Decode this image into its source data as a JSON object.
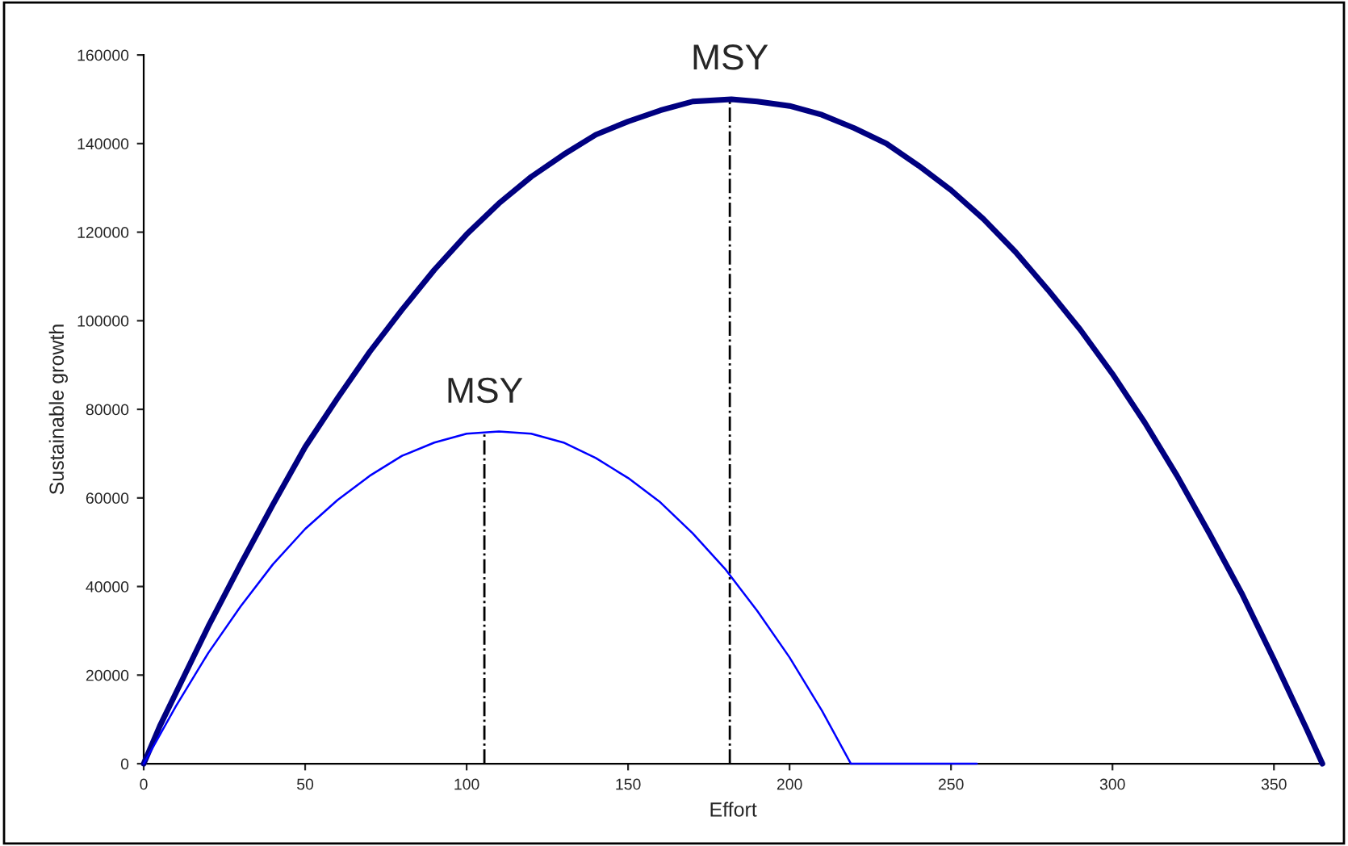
{
  "chart_data": {
    "type": "line",
    "xlabel": "Effort",
    "ylabel": "Sustainable growth",
    "xlim": [
      0,
      365
    ],
    "xticks": [
      0,
      50,
      100,
      150,
      200,
      250,
      300,
      350
    ],
    "ylim": [
      0,
      160000
    ],
    "yticks": [
      0,
      20000,
      40000,
      60000,
      80000,
      100000,
      120000,
      140000,
      160000
    ],
    "grid": false,
    "legend": false,
    "marker": "none",
    "line_style": "solid",
    "series": [
      {
        "color": "#000080",
        "x": [
          0,
          5,
          10,
          20,
          30,
          40,
          50,
          60,
          70,
          80,
          90,
          100,
          110,
          120,
          130,
          140,
          150,
          160,
          170,
          182,
          190,
          200,
          210,
          220,
          230,
          240,
          250,
          260,
          270,
          280,
          290,
          300,
          310,
          320,
          330,
          340,
          350,
          360,
          365
        ],
        "values": [
          0,
          8500,
          16000,
          31000,
          45000,
          58500,
          71500,
          82500,
          93000,
          102500,
          111500,
          119500,
          126500,
          132500,
          137500,
          142000,
          145000,
          147500,
          149500,
          150000,
          149500,
          148500,
          146500,
          143500,
          140000,
          135000,
          129500,
          123000,
          115500,
          107000,
          98000,
          88000,
          77000,
          65000,
          52000,
          38500,
          23500,
          8000,
          0
        ]
      },
      {
        "color": "#0000ff",
        "x": [
          0,
          5,
          10,
          20,
          30,
          40,
          50,
          60,
          70,
          80,
          90,
          100,
          110,
          120,
          130,
          140,
          150,
          160,
          170,
          180,
          190,
          200,
          210,
          219,
          258
        ],
        "values": [
          0,
          6500,
          13000,
          25000,
          35500,
          45000,
          53000,
          59500,
          65000,
          69500,
          72500,
          74500,
          75000,
          74500,
          72500,
          69000,
          64500,
          59000,
          52000,
          44000,
          34500,
          24000,
          12000,
          0,
          0
        ]
      }
    ],
    "ref_lines": [
      {
        "axis": "x",
        "value": 181.5,
        "label": "MSY",
        "color": "#000000"
      },
      {
        "axis": "x",
        "value": 105.5,
        "label": "MSY",
        "color": "#000000"
      }
    ]
  }
}
